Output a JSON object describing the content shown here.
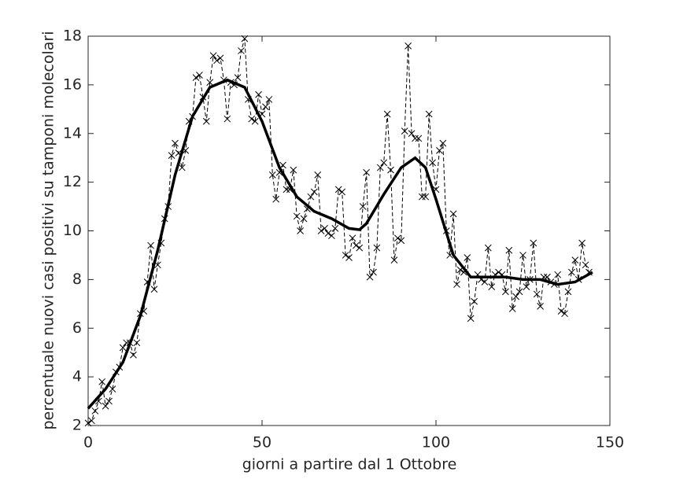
{
  "chart_data": {
    "type": "line",
    "xlabel": "giorni a partire dal 1 Ottobre",
    "ylabel": "percentuale nuovi casi positivi su tamponi molecolari",
    "xlim": [
      0,
      150
    ],
    "xticks": [
      0,
      50,
      100,
      150
    ],
    "ylim": [
      2,
      18
    ],
    "yticks": [
      2,
      4,
      6,
      8,
      10,
      12,
      14,
      16,
      18
    ],
    "series": [
      {
        "color": "#000000",
        "style": "dashed",
        "marker": "x",
        "x": [
          0,
          1,
          2,
          3,
          4,
          5,
          6,
          7,
          8,
          9,
          10,
          11,
          12,
          13,
          14,
          15,
          16,
          17,
          18,
          19,
          20,
          21,
          22,
          23,
          24,
          25,
          26,
          27,
          28,
          29,
          30,
          31,
          32,
          33,
          34,
          35,
          36,
          37,
          38,
          39,
          40,
          41,
          42,
          43,
          44,
          45,
          46,
          47,
          48,
          49,
          50,
          51,
          52,
          53,
          54,
          55,
          56,
          57,
          58,
          59,
          60,
          61,
          62,
          63,
          64,
          65,
          66,
          67,
          68,
          69,
          70,
          71,
          72,
          73,
          74,
          75,
          76,
          77,
          78,
          79,
          80,
          81,
          82,
          83,
          84,
          85,
          86,
          87,
          88,
          89,
          90,
          91,
          92,
          93,
          94,
          95,
          96,
          97,
          98,
          99,
          100,
          101,
          102,
          103,
          104,
          105,
          106,
          107,
          108,
          109,
          110,
          111,
          112,
          113,
          114,
          115,
          116,
          117,
          118,
          119,
          120,
          121,
          122,
          123,
          124,
          125,
          126,
          127,
          128,
          129,
          130,
          131,
          132,
          133,
          134,
          135,
          136,
          137,
          138,
          139,
          140,
          141,
          142,
          143,
          144
        ],
        "values": [
          2.1,
          2.2,
          2.6,
          3.0,
          3.8,
          2.8,
          3.0,
          3.5,
          4.2,
          4.4,
          5.2,
          5.4,
          5.4,
          4.9,
          5.4,
          6.6,
          6.7,
          7.9,
          9.4,
          7.6,
          8.6,
          9.5,
          10.5,
          11.0,
          13.1,
          13.6,
          13.2,
          12.6,
          13.3,
          14.5,
          14.7,
          16.3,
          16.4,
          15.5,
          14.5,
          16.1,
          17.2,
          17.0,
          17.1,
          16.2,
          14.6,
          16.1,
          16.0,
          16.3,
          17.4,
          17.9,
          15.4,
          14.6,
          14.5,
          15.6,
          14.8,
          15.1,
          15.4,
          12.3,
          11.3,
          12.4,
          12.7,
          11.7,
          11.7,
          12.5,
          10.6,
          10.0,
          10.5,
          10.9,
          11.4,
          11.6,
          12.3,
          10.0,
          10.1,
          9.9,
          9.8,
          10.1,
          11.7,
          11.6,
          9.0,
          8.9,
          9.7,
          9.4,
          9.3,
          11.0,
          12.4,
          8.1,
          8.3,
          9.3,
          12.6,
          12.8,
          14.8,
          12.5,
          8.8,
          9.7,
          9.6,
          14.1,
          17.6,
          14.0,
          13.8,
          13.8,
          11.4,
          11.4,
          14.8,
          12.8,
          11.7,
          13.3,
          13.6,
          10.0,
          9.0,
          10.7,
          7.8,
          8.4,
          8.3,
          8.9,
          6.4,
          7.1,
          8.2,
          8.0,
          7.9,
          9.3,
          7.7,
          8.2,
          8.3,
          8.2,
          7.5,
          9.2,
          6.8,
          7.3,
          7.5,
          9.0,
          7.7,
          8.0,
          9.5,
          7.4,
          6.9,
          8.1,
          8.1,
          7.9,
          7.8,
          8.2,
          6.7,
          6.6,
          7.5,
          8.3,
          8.8,
          8.0,
          9.5,
          8.6,
          8.3
        ]
      },
      {
        "color": "#000000",
        "style": "solid",
        "x": [
          0,
          5,
          10,
          15,
          20,
          25,
          30,
          35,
          40,
          45,
          50,
          55,
          60,
          65,
          70,
          75,
          78,
          80,
          85,
          90,
          94,
          97,
          100,
          105,
          110,
          115,
          120,
          125,
          130,
          135,
          140,
          145
        ],
        "values": [
          2.7,
          3.5,
          4.6,
          6.5,
          9.2,
          12.3,
          14.7,
          15.9,
          16.2,
          15.9,
          14.5,
          12.6,
          11.4,
          10.8,
          10.5,
          10.1,
          10.05,
          10.3,
          11.5,
          12.6,
          13.0,
          12.6,
          11.3,
          9.0,
          8.1,
          8.1,
          8.1,
          8.0,
          8.0,
          7.8,
          7.9,
          8.3
        ]
      }
    ]
  }
}
